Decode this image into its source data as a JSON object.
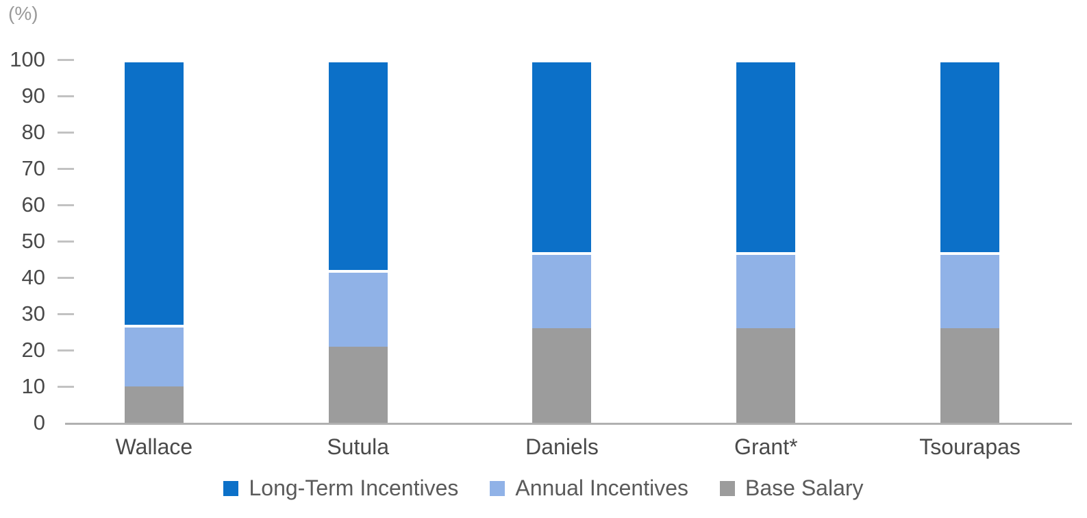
{
  "chart_data": {
    "type": "bar",
    "stacked": true,
    "title": "",
    "unit_label": "(%)",
    "categories": [
      "Wallace",
      "Sutula",
      "Daniels",
      "Grant*",
      "Tsourapas"
    ],
    "series": [
      {
        "name": "Base Salary",
        "color": "#9c9c9c",
        "values": [
          10,
          21,
          26,
          26,
          26
        ]
      },
      {
        "name": "Annual Incentives",
        "color": "#90b2e7",
        "values": [
          17,
          21,
          21,
          21,
          21
        ]
      },
      {
        "name": "Long-Term Incentives",
        "color": "#0c70c8",
        "values": [
          73,
          58,
          53,
          53,
          53
        ]
      }
    ],
    "legend_items": [
      {
        "label": "Long-Term Incentives",
        "color": "#0c70c8"
      },
      {
        "label": "Annual Incentives",
        "color": "#90b2e7"
      },
      {
        "label": "Base Salary",
        "color": "#9c9c9c"
      }
    ],
    "ylim": [
      0,
      100
    ],
    "yticks": [
      0,
      10,
      20,
      30,
      40,
      50,
      60,
      70,
      80,
      90,
      100
    ],
    "grid": false,
    "legend_position": "bottom"
  },
  "styles": {
    "axis_line_color": "#b0b0b0",
    "tick_dash_color": "#c2c2c2",
    "tick_label_color": "#4a4a4a",
    "category_label_color": "#4a4a4a",
    "legend_label_color": "#5a5a5a",
    "unit_label_color": "#9a9a9a",
    "segment_gap_color": "#ffffff"
  }
}
